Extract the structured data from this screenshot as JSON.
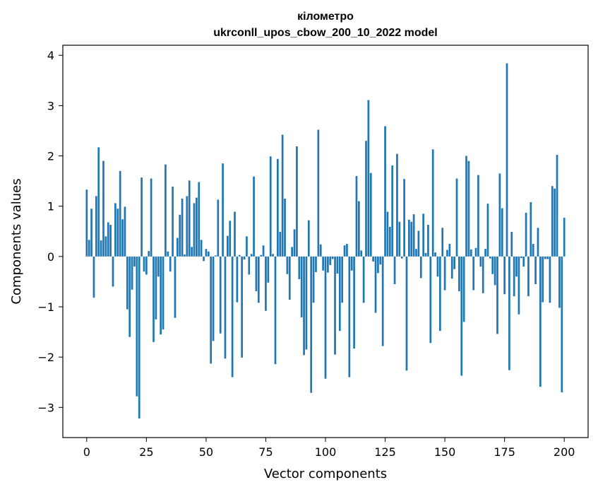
{
  "chart_data": {
    "type": "bar",
    "title": "кілометро",
    "subtitle": "ukrconll_upos_cbow_200_10_2022 model",
    "xlabel": "Vector components",
    "ylabel": "Components values",
    "xlim": [
      -10,
      210
    ],
    "ylim": [
      -3.6,
      4.2
    ],
    "xticks": [
      0,
      25,
      50,
      75,
      100,
      125,
      150,
      175,
      200
    ],
    "yticks": [
      -3,
      -2,
      -1,
      0,
      1,
      2,
      3,
      4
    ],
    "grid": false,
    "color": "#1f77b4",
    "x_start": 0,
    "values": [
      1.33,
      0.33,
      0.95,
      -0.82,
      1.2,
      2.17,
      0.32,
      1.9,
      0.4,
      0.68,
      0.63,
      -0.6,
      1.06,
      0.95,
      1.7,
      0.74,
      0.99,
      -1.05,
      -1.6,
      -0.66,
      -0.2,
      -2.78,
      -3.22,
      1.57,
      -0.3,
      -0.36,
      0.11,
      1.55,
      -1.7,
      -1.25,
      -0.4,
      -1.55,
      -1.45,
      1.83,
      0.1,
      -0.3,
      1.39,
      -1.22,
      0.37,
      0.83,
      1.15,
      0.04,
      1.2,
      1.51,
      0.19,
      1.06,
      1.17,
      1.48,
      0.33,
      -0.09,
      0.15,
      0.1,
      -2.13,
      -1.68,
      0.02,
      1.13,
      -1.53,
      1.85,
      -2.03,
      0.41,
      0.71,
      -2.4,
      0.89,
      -0.91,
      0.03,
      -2.01,
      -0.06,
      0.4,
      -0.36,
      0.05,
      1.59,
      -0.69,
      -0.92,
      0.03,
      0.22,
      -1.08,
      -0.52,
      1.99,
      0.05,
      -2.14,
      1.94,
      0.49,
      2.42,
      1.15,
      -0.35,
      -0.86,
      0.19,
      0.54,
      2.19,
      -0.45,
      -1.21,
      -1.96,
      -1.85,
      0.72,
      -2.71,
      -0.92,
      -0.31,
      2.52,
      0.24,
      -0.28,
      -2.43,
      -0.32,
      -0.17,
      -0.05,
      -1.95,
      -0.34,
      -1.48,
      -0.92,
      0.22,
      0.25,
      -2.4,
      -0.28,
      -1.83,
      1.6,
      1.1,
      0.12,
      -0.92,
      2.3,
      3.11,
      1.66,
      -0.1,
      -1.12,
      -0.33,
      -0.16,
      -1.78,
      2.59,
      0.89,
      0.59,
      1.81,
      -0.55,
      2.04,
      0.69,
      -0.04,
      1.54,
      -2.27,
      0.73,
      0.69,
      0.84,
      0.15,
      0.51,
      -0.43,
      0.85,
      0.07,
      0.63,
      -1.72,
      2.13,
      0.08,
      -0.4,
      -1.48,
      0.57,
      -0.67,
      0.13,
      0.25,
      -0.44,
      -0.25,
      1.55,
      -0.69,
      -2.37,
      -1.3,
      2.0,
      1.9,
      0.14,
      -0.67,
      0.17,
      1.62,
      -0.2,
      -0.73,
      0.15,
      1.05,
      -0.04,
      -0.35,
      -0.57,
      -1.54,
      1.65,
      0.96,
      -0.75,
      3.84,
      -2.26,
      0.49,
      -0.79,
      -0.4,
      -1.15,
      -0.03,
      -0.2,
      0.87,
      -0.79,
      1.08,
      0.25,
      -0.55,
      0.57,
      -2.59,
      -0.91,
      -0.05,
      -0.05,
      -0.92,
      1.4,
      1.35,
      2.02,
      -1.02,
      -2.7,
      0.77
    ]
  }
}
